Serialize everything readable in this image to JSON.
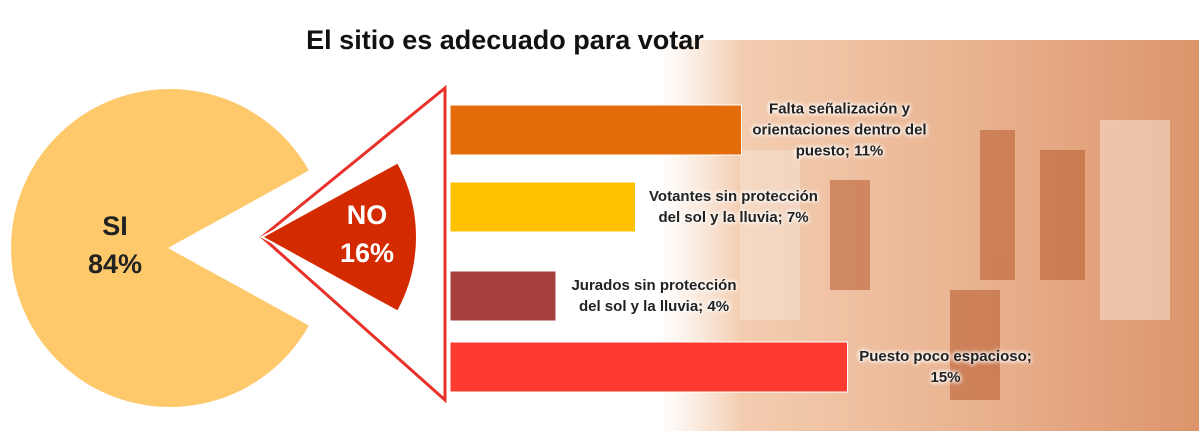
{
  "chart_data": [
    {
      "type": "pie",
      "title": "El sitio es adecuado para votar",
      "categories": [
        "SI",
        "NO"
      ],
      "values": [
        84,
        16
      ],
      "value_labels": [
        "84%",
        "16%"
      ],
      "colors": [
        "#fdc96b",
        "#d42a00"
      ]
    },
    {
      "type": "bar",
      "orientation": "horizontal",
      "values": [
        11,
        7,
        4,
        15
      ],
      "value_labels": [
        "Falta señalización y orientaciones dentro del puesto; 11%",
        "Votantes sin protección del sol y la lluvia; 7%",
        "Jurados sin protección del sol y la lluvia; 4%",
        "Puesto poco espacioso; 15%"
      ],
      "colors": [
        "#e46c0a",
        "#ffc000",
        "#a5403d",
        "#ff3b30"
      ]
    }
  ]
}
